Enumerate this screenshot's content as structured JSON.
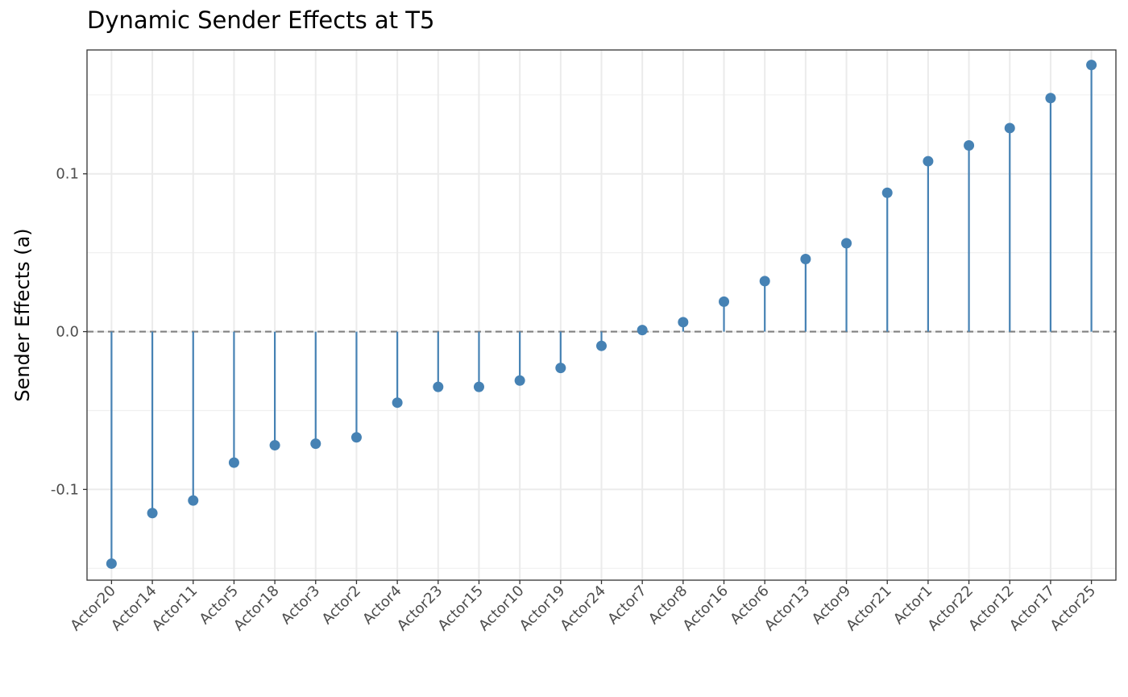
{
  "chart_data": {
    "type": "lollipop",
    "title": "Dynamic Sender Effects at T5",
    "xlabel": "",
    "ylabel": "Sender Effects (a)",
    "ylim": [
      -0.1575,
      0.1785
    ],
    "yticks": [
      -0.1,
      0.0,
      0.1
    ],
    "ytick_labels": [
      "-0.1",
      "0.0",
      "0.1"
    ],
    "reference_line": {
      "y": 0.0,
      "style": "dashed",
      "color": "#808080"
    },
    "grid": true,
    "categories": [
      "Actor20",
      "Actor14",
      "Actor11",
      "Actor5",
      "Actor18",
      "Actor3",
      "Actor2",
      "Actor4",
      "Actor23",
      "Actor15",
      "Actor10",
      "Actor19",
      "Actor24",
      "Actor7",
      "Actor8",
      "Actor16",
      "Actor6",
      "Actor13",
      "Actor9",
      "Actor21",
      "Actor1",
      "Actor22",
      "Actor12",
      "Actor17",
      "Actor25"
    ],
    "values": [
      -0.147,
      -0.115,
      -0.107,
      -0.083,
      -0.072,
      -0.071,
      -0.067,
      -0.045,
      -0.035,
      -0.035,
      -0.031,
      -0.023,
      -0.009,
      0.001,
      0.006,
      0.019,
      0.032,
      0.046,
      0.056,
      0.088,
      0.108,
      0.118,
      0.129,
      0.148,
      0.169
    ],
    "color": "#4682b4"
  }
}
